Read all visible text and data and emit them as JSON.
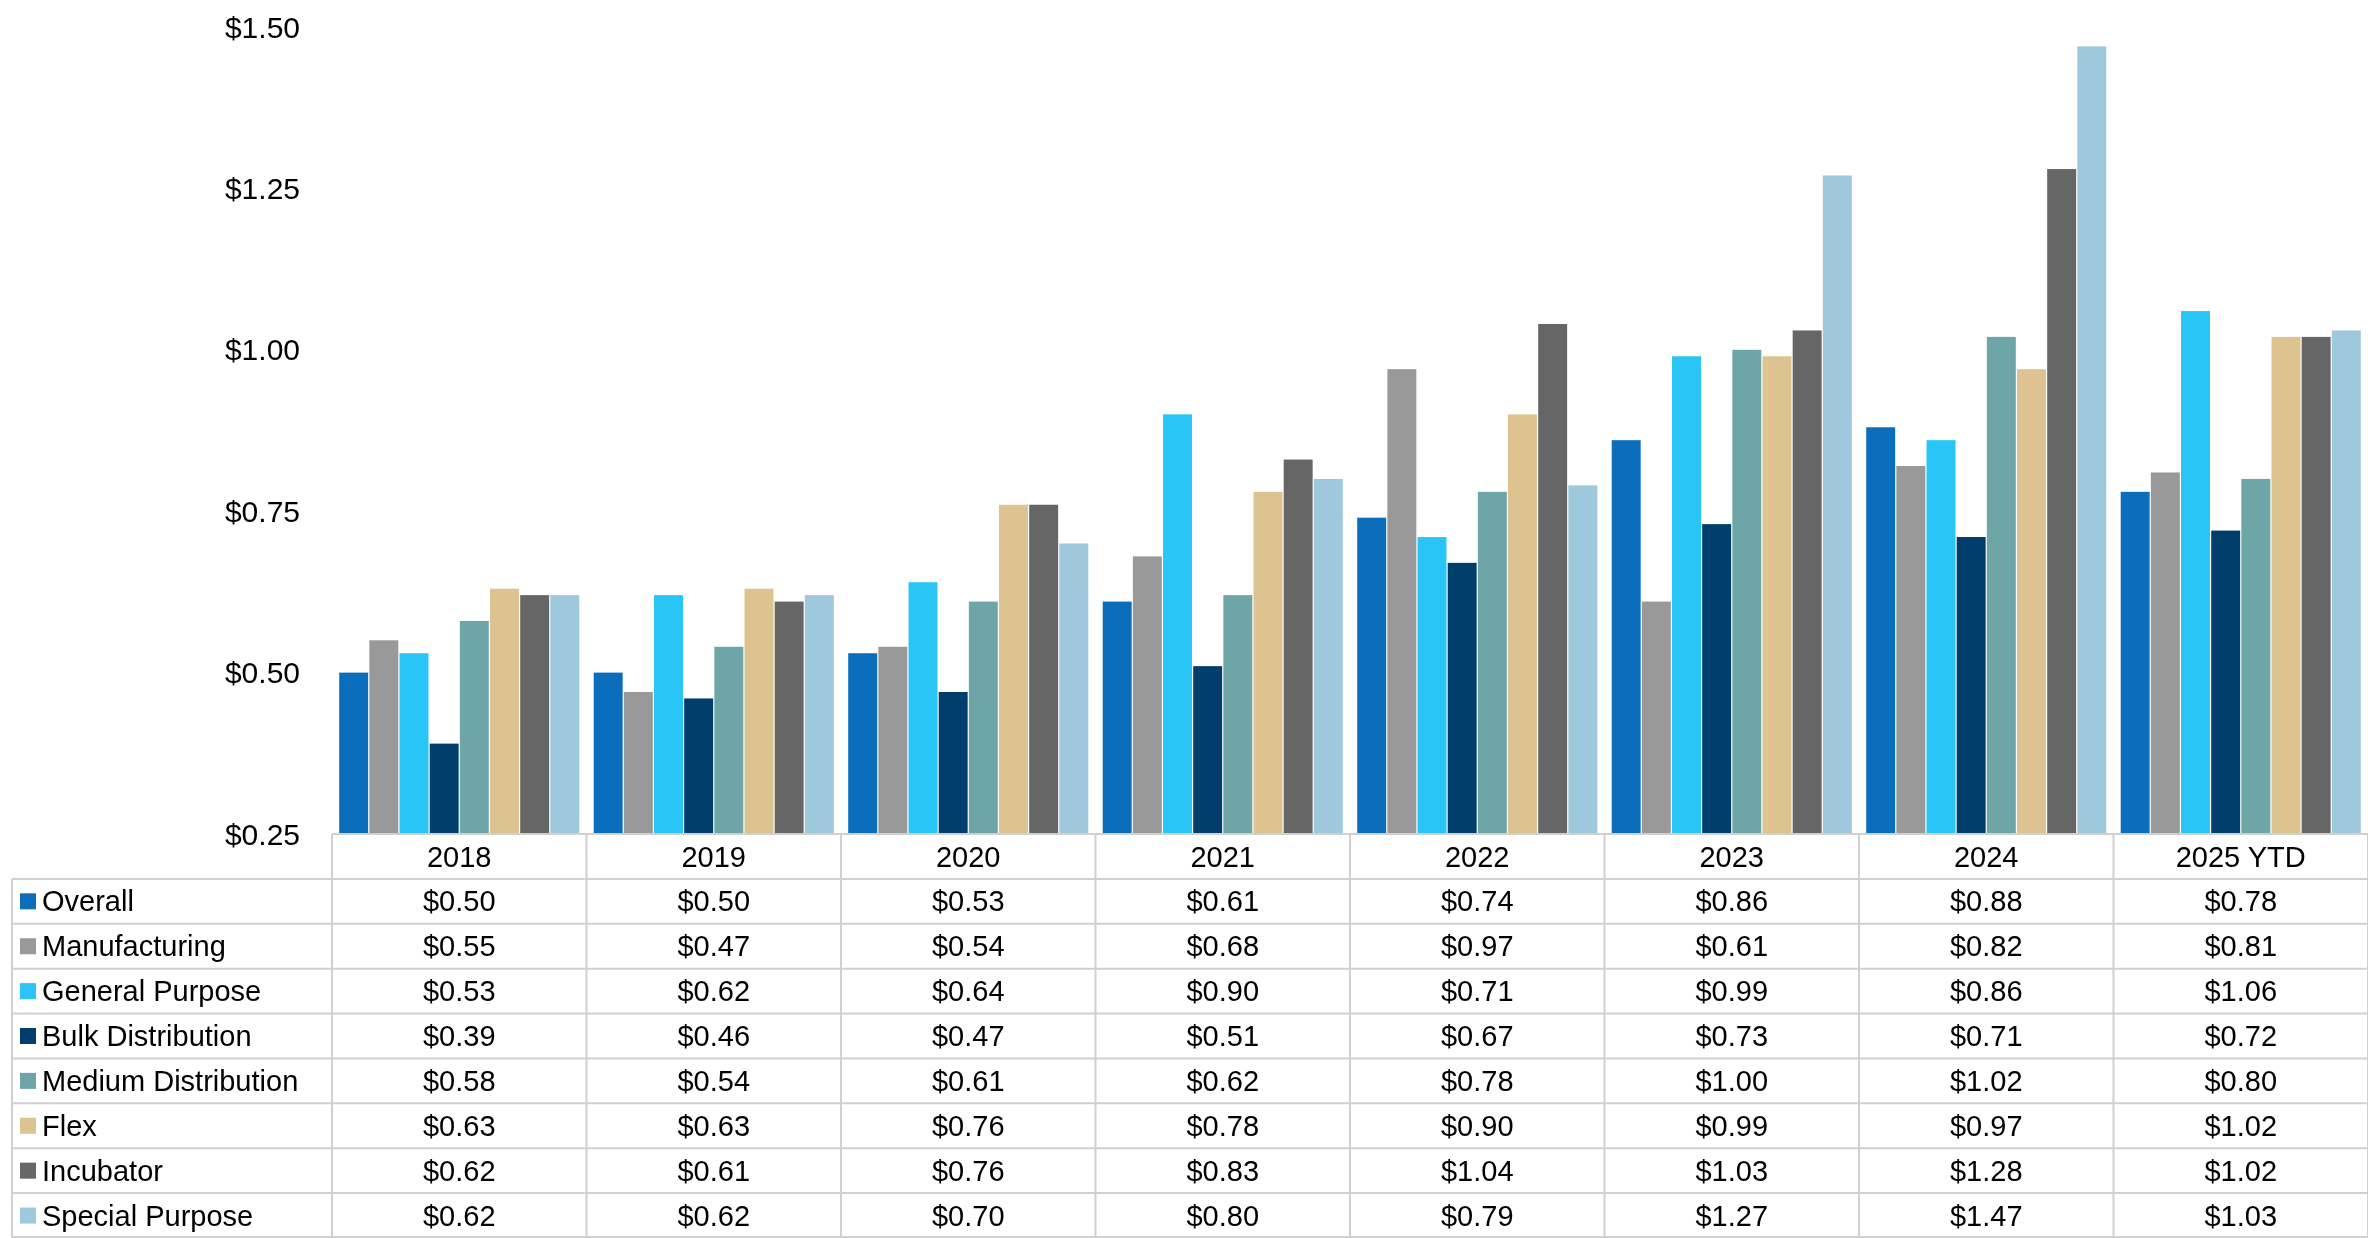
{
  "chart_data": {
    "type": "bar",
    "categories": [
      "2018",
      "2019",
      "2020",
      "2021",
      "2022",
      "2023",
      "2024",
      "2025 YTD"
    ],
    "ylim": [
      0.25,
      1.5
    ],
    "yticks": [
      {
        "value": 0.25,
        "label": "$0.25"
      },
      {
        "value": 0.5,
        "label": "$0.50"
      },
      {
        "value": 0.75,
        "label": "$0.75"
      },
      {
        "value": 1.0,
        "label": "$1.00"
      },
      {
        "value": 1.25,
        "label": "$1.25"
      },
      {
        "value": 1.5,
        "label": "$1.50"
      }
    ],
    "grid": false,
    "legend": "bottom",
    "series": [
      {
        "name": "Overall",
        "color": "#0a6ebd",
        "values": [
          0.5,
          0.5,
          0.53,
          0.61,
          0.74,
          0.86,
          0.88,
          0.78
        ],
        "value_labels": [
          "$0.50",
          "$0.50",
          "$0.53",
          "$0.61",
          "$0.74",
          "$0.86",
          "$0.88",
          "$0.78"
        ]
      },
      {
        "name": "Manufacturing",
        "color": "#999999",
        "values": [
          0.55,
          0.47,
          0.54,
          0.68,
          0.97,
          0.61,
          0.82,
          0.81
        ],
        "value_labels": [
          "$0.55",
          "$0.47",
          "$0.54",
          "$0.68",
          "$0.97",
          "$0.61",
          "$0.82",
          "$0.81"
        ]
      },
      {
        "name": "General Purpose",
        "color": "#29c5f6",
        "values": [
          0.53,
          0.62,
          0.64,
          0.9,
          0.71,
          0.99,
          0.86,
          1.06
        ],
        "value_labels": [
          "$0.53",
          "$0.62",
          "$0.64",
          "$0.90",
          "$0.71",
          "$0.99",
          "$0.86",
          "$1.06"
        ]
      },
      {
        "name": "Bulk Distribution",
        "color": "#003f6b",
        "values": [
          0.39,
          0.46,
          0.47,
          0.51,
          0.67,
          0.73,
          0.71,
          0.72
        ],
        "value_labels": [
          "$0.39",
          "$0.46",
          "$0.47",
          "$0.51",
          "$0.67",
          "$0.73",
          "$0.71",
          "$0.72"
        ]
      },
      {
        "name": "Medium Distribution",
        "color": "#6ea6a8",
        "values": [
          0.58,
          0.54,
          0.61,
          0.62,
          0.78,
          1.0,
          1.02,
          0.8
        ],
        "value_labels": [
          "$0.58",
          "$0.54",
          "$0.61",
          "$0.62",
          "$0.78",
          "$1.00",
          "$1.02",
          "$0.80"
        ]
      },
      {
        "name": "Flex",
        "color": "#dcc38f",
        "values": [
          0.63,
          0.63,
          0.76,
          0.78,
          0.9,
          0.99,
          0.97,
          1.02
        ],
        "value_labels": [
          "$0.63",
          "$0.63",
          "$0.76",
          "$0.78",
          "$0.90",
          "$0.99",
          "$0.97",
          "$1.02"
        ]
      },
      {
        "name": "Incubator",
        "color": "#666666",
        "values": [
          0.62,
          0.61,
          0.76,
          0.83,
          1.04,
          1.03,
          1.28,
          1.02
        ],
        "value_labels": [
          "$0.62",
          "$0.61",
          "$0.76",
          "$0.83",
          "$1.04",
          "$1.03",
          "$1.28",
          "$1.02"
        ]
      },
      {
        "name": "Special Purpose",
        "color": "#9ec9dc",
        "values": [
          0.62,
          0.62,
          0.7,
          0.8,
          0.79,
          1.27,
          1.47,
          1.03
        ],
        "value_labels": [
          "$0.62",
          "$0.62",
          "$0.70",
          "$0.80",
          "$0.79",
          "$1.27",
          "$1.47",
          "$1.03"
        ]
      }
    ]
  }
}
